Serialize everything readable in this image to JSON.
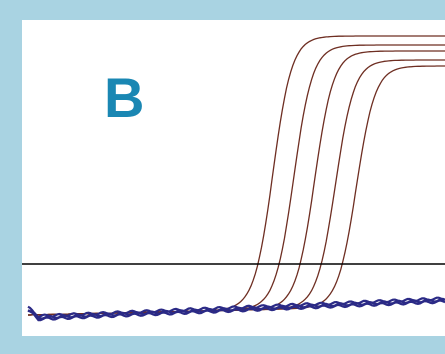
{
  "panel_label": "B",
  "colors": {
    "frame": "#a9d3e2",
    "panel_label": "#1a87b3",
    "amplified": "#6e2e22",
    "baseline": "#2b2a86",
    "threshold": "#000000"
  },
  "chart_data": {
    "type": "line",
    "title": "",
    "xlabel": "",
    "ylabel": "",
    "xlim": [
      0,
      40
    ],
    "ylim": [
      0,
      1
    ],
    "grid": false,
    "legend": "none",
    "threshold": 0.2,
    "series": [
      {
        "midpoint": 23.5,
        "plateau": 0.96,
        "kind": "amplified"
      },
      {
        "midpoint": 25.5,
        "plateau": 0.93,
        "kind": "amplified"
      },
      {
        "midpoint": 27.5,
        "plateau": 0.91,
        "kind": "amplified"
      },
      {
        "midpoint": 29.5,
        "plateau": 0.88,
        "kind": "amplified"
      },
      {
        "midpoint": 31.5,
        "plateau": 0.86,
        "kind": "amplified"
      },
      {
        "kind": "baseline",
        "y_start": 0.02,
        "y_end": 0.08
      },
      {
        "kind": "baseline",
        "y_start": 0.015,
        "y_end": 0.075
      },
      {
        "kind": "baseline",
        "y_start": 0.025,
        "y_end": 0.085
      }
    ]
  }
}
